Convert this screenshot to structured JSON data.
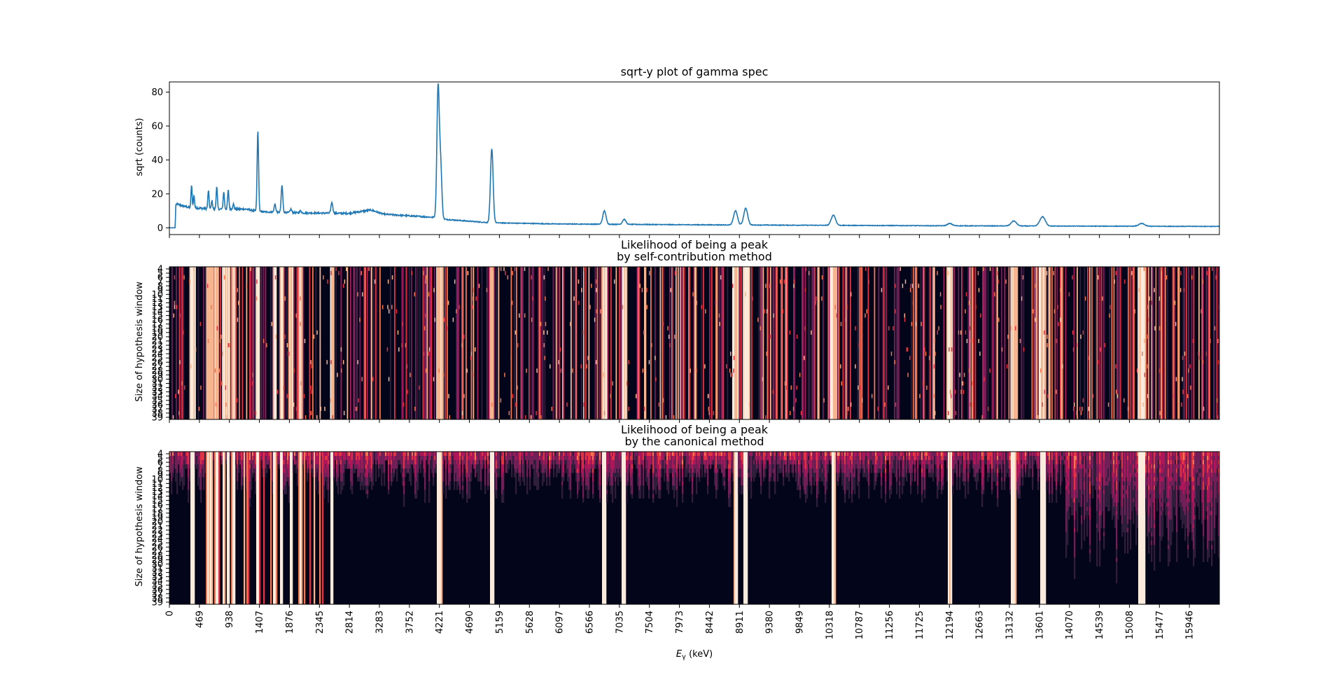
{
  "chart_data": [
    {
      "type": "line",
      "title": "sqrt-y plot of gamma spec",
      "ylabel": "sqrt (counts)",
      "xlabel": "",
      "xlim": [
        0,
        16415
      ],
      "ylim": [
        -4,
        86
      ],
      "yticks": [
        0,
        20,
        40,
        60,
        80
      ],
      "line_color": "#1f77b4",
      "baseline": [
        [
          0,
          0
        ],
        [
          90,
          0
        ],
        [
          100,
          14
        ],
        [
          300,
          12
        ],
        [
          700,
          11
        ],
        [
          1200,
          11
        ],
        [
          1400,
          9.5
        ],
        [
          2000,
          8.8
        ],
        [
          2800,
          8.5
        ],
        [
          3150,
          10.5
        ],
        [
          3350,
          8
        ],
        [
          4200,
          6
        ],
        [
          4300,
          5
        ],
        [
          5000,
          3
        ],
        [
          6000,
          2.3
        ],
        [
          8000,
          1.8
        ],
        [
          10000,
          1.5
        ],
        [
          12000,
          1.2
        ],
        [
          14000,
          1
        ],
        [
          16415,
          0.8
        ]
      ],
      "peaks": [
        {
          "x": 346,
          "y": 25
        },
        {
          "x": 384,
          "y": 19
        },
        {
          "x": 610,
          "y": 22
        },
        {
          "x": 665,
          "y": 16
        },
        {
          "x": 740,
          "y": 24
        },
        {
          "x": 850,
          "y": 21
        },
        {
          "x": 920,
          "y": 22
        },
        {
          "x": 1000,
          "y": 14
        },
        {
          "x": 1383,
          "y": 57
        },
        {
          "x": 1650,
          "y": 14
        },
        {
          "x": 1760,
          "y": 25
        },
        {
          "x": 1900,
          "y": 11
        },
        {
          "x": 2050,
          "y": 10
        },
        {
          "x": 2540,
          "y": 15
        },
        {
          "x": 4200,
          "y": 82
        },
        {
          "x": 4240,
          "y": 37
        },
        {
          "x": 5040,
          "y": 46.5
        },
        {
          "x": 6800,
          "y": 10
        },
        {
          "x": 7110,
          "y": 5
        },
        {
          "x": 8850,
          "y": 10
        },
        {
          "x": 9010,
          "y": 11.5
        },
        {
          "x": 10380,
          "y": 7.5
        },
        {
          "x": 12200,
          "y": 2.5
        },
        {
          "x": 13200,
          "y": 4
        },
        {
          "x": 13650,
          "y": 6.5
        },
        {
          "x": 15200,
          "y": 2.5
        }
      ]
    },
    {
      "type": "heatmap",
      "title_line1": "Likelihood of being a peak",
      "title_line2": "by self-contribution method",
      "ylabel": "Size of hypothesis window",
      "xlim": [
        0,
        16415
      ],
      "window_sizes": [
        4,
        39
      ],
      "yticks": [
        4,
        5,
        6,
        7,
        8,
        9,
        10,
        11,
        12,
        13,
        14,
        15,
        16,
        17,
        18,
        19,
        20,
        21,
        22,
        23,
        24,
        25,
        26,
        27,
        28,
        29,
        30,
        31,
        32,
        33,
        34,
        35,
        36,
        37,
        38,
        39
      ],
      "colormap": [
        "#03051a",
        "#2e1e3b",
        "#701f57",
        "#ad1759",
        "#e13342",
        "#f37651",
        "#f6b48f",
        "#faebdd"
      ]
    },
    {
      "type": "heatmap",
      "title_line1": "Likelihood of being a peak",
      "title_line2": "by the canonical method",
      "ylabel": "Size of hypothesis window",
      "xlabel": "E_γ (keV)",
      "xlim": [
        0,
        16415
      ],
      "window_sizes": [
        4,
        39
      ],
      "yticks": [
        4,
        5,
        6,
        7,
        8,
        9,
        10,
        11,
        12,
        13,
        14,
        15,
        16,
        17,
        18,
        19,
        20,
        21,
        22,
        23,
        24,
        25,
        26,
        27,
        28,
        29,
        30,
        31,
        32,
        33,
        34,
        35,
        36,
        37,
        38,
        39
      ],
      "xticks": [
        0,
        469,
        938,
        1407,
        1876,
        2345,
        2814,
        3283,
        3752,
        4221,
        4690,
        5159,
        5628,
        6097,
        6566,
        7035,
        7504,
        7973,
        8442,
        8911,
        9380,
        9849,
        10318,
        10787,
        11256,
        11725,
        12194,
        12663,
        13132,
        13601,
        14070,
        14539,
        15008,
        15477,
        15946
      ],
      "colormap": [
        "#03051a",
        "#2e1e3b",
        "#701f57",
        "#ad1759",
        "#e13342",
        "#f37651",
        "#f6b48f",
        "#faebdd"
      ]
    }
  ]
}
